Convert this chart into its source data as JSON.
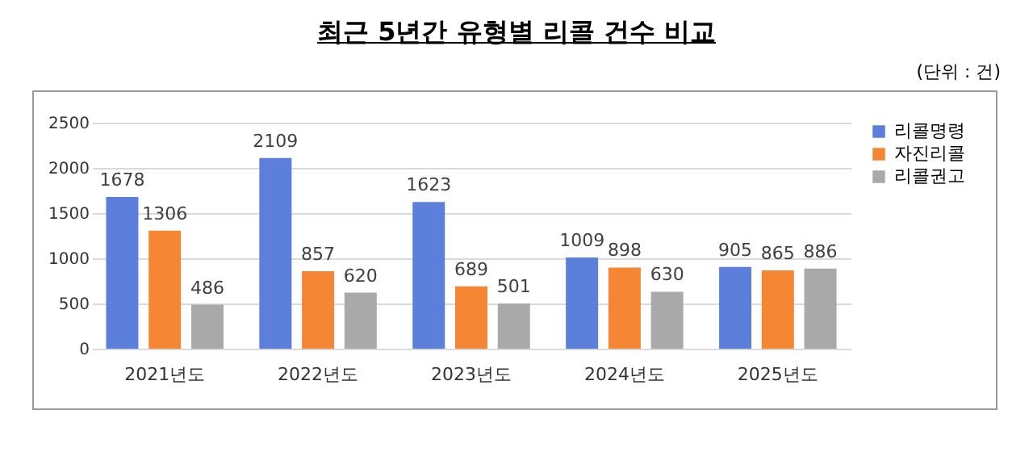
{
  "chart_data": {
    "type": "bar",
    "title": "최근 5년간 유형별 리콜 건수 비교",
    "annotations": [
      "(단위 : 건)"
    ],
    "categories": [
      "2021년도",
      "2022년도",
      "2023년도",
      "2024년도",
      "2025년도"
    ],
    "series": [
      {
        "name": "리콜명령",
        "color": "#5b7fdb",
        "values": [
          1678,
          2109,
          1623,
          1009,
          905
        ]
      },
      {
        "name": "자진리콜",
        "color": "#f58634",
        "values": [
          1306,
          857,
          689,
          898,
          865
        ]
      },
      {
        "name": "리콜권고",
        "color": "#a9a9a9",
        "values": [
          486,
          620,
          501,
          630,
          886
        ]
      }
    ],
    "ylim": [
      0,
      2500
    ],
    "yticks": [
      0,
      500,
      1000,
      1500,
      2000,
      2500
    ],
    "grid": "y",
    "legend": "right",
    "data_labels": true
  }
}
